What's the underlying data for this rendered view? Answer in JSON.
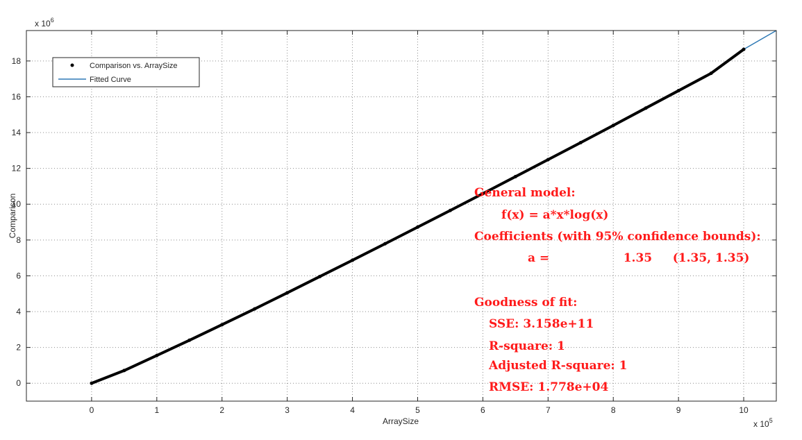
{
  "chart_data": {
    "type": "scatter",
    "xlabel": "ArraySize",
    "ylabel": "Comparison",
    "x_exponent_label": "x 10",
    "x_exponent": "5",
    "y_exponent_label": "x 10",
    "y_exponent": "6",
    "xlim": [
      -1,
      10.5
    ],
    "ylim": [
      -1,
      19.7
    ],
    "xticks": [
      0,
      1,
      2,
      3,
      4,
      5,
      6,
      7,
      8,
      9,
      10
    ],
    "yticks": [
      0,
      2,
      4,
      6,
      8,
      10,
      12,
      14,
      16,
      18
    ],
    "grid": true,
    "legend_placement": "top-left",
    "series": [
      {
        "name": "Comparison vs. ArraySize",
        "kind": "markers",
        "color": "#000000",
        "x": [
          0,
          0.5,
          1,
          1.5,
          2,
          2.5,
          3,
          3.5,
          4,
          4.5,
          5,
          5.5,
          6,
          6.5,
          7,
          7.5,
          8,
          8.5,
          9,
          9.5,
          10
        ],
        "y": [
          0,
          0.71,
          1.55,
          2.4,
          3.27,
          4.15,
          5.05,
          5.96,
          6.87,
          7.79,
          8.72,
          9.65,
          10.59,
          11.54,
          12.49,
          13.44,
          14.4,
          15.37,
          16.34,
          17.31,
          18.65
        ]
      },
      {
        "name": "Fitted Curve",
        "kind": "line",
        "color": "#2e79b5",
        "x": [
          0,
          0.5,
          1,
          1.5,
          2,
          2.5,
          3,
          3.5,
          4,
          4.5,
          5,
          5.5,
          6,
          6.5,
          7,
          7.5,
          8,
          8.5,
          9,
          9.5,
          10,
          10.5
        ],
        "y": [
          0,
          0.71,
          1.55,
          2.4,
          3.27,
          4.15,
          5.05,
          5.96,
          6.87,
          7.79,
          8.72,
          9.65,
          10.59,
          11.54,
          12.49,
          13.44,
          14.4,
          15.37,
          16.34,
          17.31,
          18.65,
          19.7
        ]
      }
    ]
  },
  "annotation": {
    "lines": [
      "General model:",
      "f(x) = a*x*log(x)",
      "Coefficients (with 95% confidence bounds):",
      "a =                  1.35     (1.35, 1.35)",
      "Goodness of fit:",
      "SSE: 3.158e+11",
      "R-square: 1",
      "Adjusted R-square: 1",
      "RMSE: 1.778e+04"
    ],
    "color": "#ff1a1a"
  }
}
